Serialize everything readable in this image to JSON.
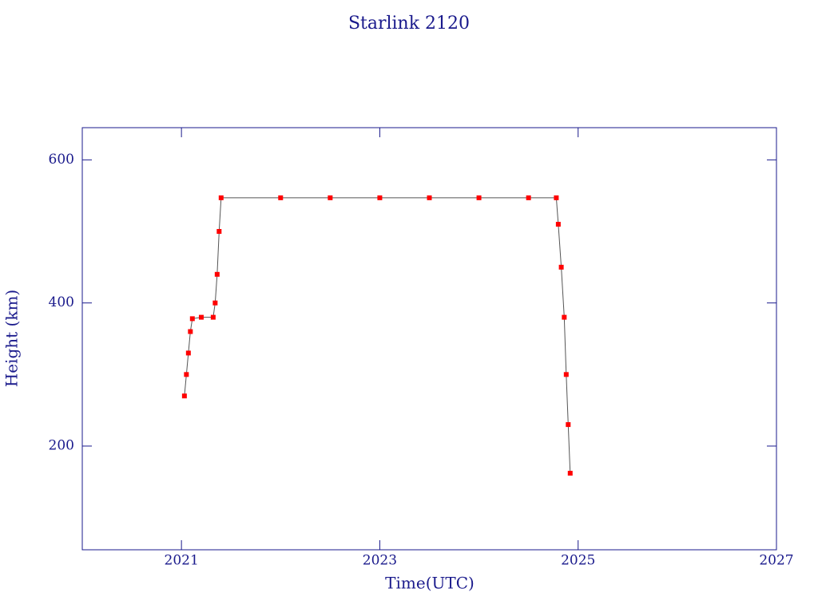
{
  "chart_data": {
    "type": "scatter",
    "title": "Starlink 2120",
    "xlabel": "Time(UTC)",
    "ylabel": "Height (km)",
    "xlim": [
      2020,
      2027
    ],
    "xticks": [
      2021,
      2023,
      2025,
      2027
    ],
    "ylim": [
      55,
      645
    ],
    "yticks": [
      200,
      400,
      600
    ],
    "series": [
      {
        "color": "#ff0000",
        "x": [
          2021.03,
          2021.05,
          2021.07,
          2021.09,
          2021.11,
          2021.2,
          2021.32,
          2021.34,
          2021.36,
          2021.38,
          2021.4,
          2022.0,
          2022.5,
          2023.0,
          2023.5,
          2024.0,
          2024.5,
          2024.78,
          2024.8,
          2024.83,
          2024.86,
          2024.88,
          2024.9,
          2024.92
        ],
        "values": [
          270,
          300,
          330,
          360,
          378,
          380,
          380,
          400,
          440,
          500,
          547,
          547,
          547,
          547,
          547,
          547,
          547,
          547,
          510,
          450,
          380,
          300,
          230,
          162
        ]
      }
    ]
  }
}
